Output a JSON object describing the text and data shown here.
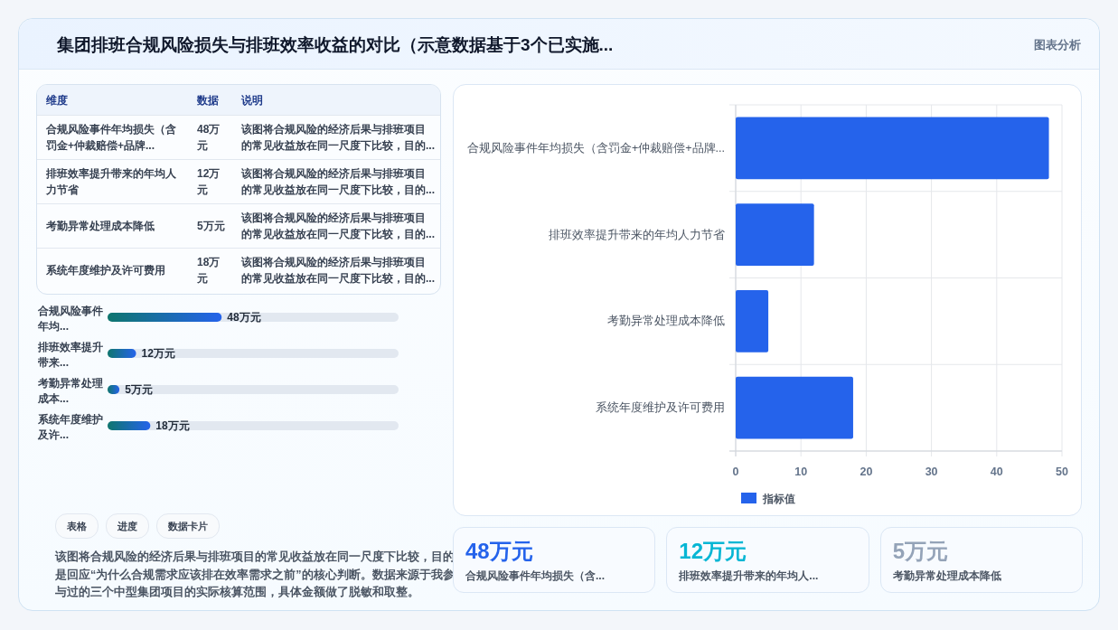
{
  "chart_data": [
    {
      "type": "other",
      "title": "集团排班合规风险损失与排班效率收益的对比（示意数据基于3个已实施...",
      "categories": [
        "合规风险事件年均损失（含罚金+仲裁赔偿+品牌...",
        "排班效率提升带来的年均人力节省",
        "考勤异常处理成本降低",
        "系统年度维护及许可费用"
      ],
      "value_labels": [
        "48万元",
        "12万元",
        "5万元",
        "18万元"
      ],
      "annotations": [
        "图表分析",
        "维度",
        "数据",
        "说明",
        "该图将合规风险的经济后果与排班项目的常见收益放在同一尺度下比较，目的...",
        "该图将合规风险的经济后果与排班项目的常见收益放在同一尺度下比较，目的...",
        "该图将合规风险的经济后果与排班项目的常见收益放在同一尺度下比较，目的...",
        "该图将合规风险的经济后果与排班项目的常见收益放在同一尺度下比较，目的..."
      ]
    },
    {
      "type": "bar",
      "orientation": "horizontal",
      "categories": [
        "合规风险事件年均...",
        "排班效率提升带来...",
        "考勤异常处理成本...",
        "系统年度维护及许..."
      ],
      "values": [
        48,
        12,
        5,
        18
      ],
      "color": "#2563eb",
      "value_labels": [
        "48万元",
        "12万元",
        "5万元",
        "18万元"
      ],
      "annotations": [
        "表格",
        "进度",
        "数据卡片",
        "该图将合规风险的经济后果与排班项目的常见收益放在同一尺度下比较，目的是回应“为什么合规需求应该排在效率需求之前”的核心判断。数据来源于我参与过的三个中型集团项目的实际核算范围，具体金额做了脱敏和取整。"
      ]
    },
    {
      "type": "bar",
      "orientation": "horizontal",
      "categories": [
        "合规风险事件年均损失（含罚金+仲裁赔偿+品牌...",
        "排班效率提升带来的年均人力节省",
        "考勤异常处理成本降低",
        "系统年度维护及许可费用"
      ],
      "series": [
        {
          "name": "指标值",
          "color": "#2563eb",
          "values": [
            48,
            12,
            5,
            18
          ]
        }
      ],
      "xlim": [
        0,
        50
      ],
      "xticks": [
        0,
        10,
        20,
        30,
        40,
        50
      ],
      "grid": true,
      "legend": "bottom"
    },
    {
      "type": "other",
      "categories": [
        "合规风险事件年均损失（含...",
        "排班效率提升带来的年均人...",
        "考勤异常处理成本降低"
      ],
      "value_labels": [
        "48万元",
        "12万元",
        "5万元"
      ]
    }
  ]
}
